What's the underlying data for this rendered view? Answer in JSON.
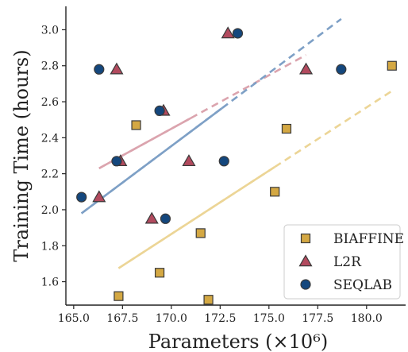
{
  "chart_data": {
    "type": "scatter",
    "xlabel": "Parameters (×10⁶)",
    "ylabel": "Training Time (hours)",
    "xlim": [
      164.6,
      182.0
    ],
    "ylim": [
      1.47,
      3.13
    ],
    "xticks": [
      165.0,
      167.5,
      170.0,
      172.5,
      175.0,
      177.5,
      180.0
    ],
    "xtick_labels": [
      "165.0",
      "167.5",
      "170.0",
      "172.5",
      "175.0",
      "177.5",
      "180.0"
    ],
    "yticks": [
      1.6,
      1.8,
      2.0,
      2.2,
      2.4,
      2.6,
      2.8,
      3.0
    ],
    "ytick_labels": [
      "1.6",
      "1.8",
      "2.0",
      "2.2",
      "2.4",
      "2.6",
      "2.8",
      "3.0"
    ],
    "legend_position": "bottom-right",
    "grid": false,
    "series": [
      {
        "name": "Biaffine",
        "display_name": "BIAFFINE",
        "marker": "square",
        "color": "#d4a843",
        "edge_color": "#3a3a3a",
        "fit_color": "#ecd596",
        "points": [
          [
            167.3,
            1.52
          ],
          [
            168.2,
            2.47
          ],
          [
            169.4,
            1.65
          ],
          [
            171.5,
            1.87
          ],
          [
            171.9,
            1.5
          ],
          [
            175.3,
            2.1
          ],
          [
            175.9,
            2.45
          ],
          [
            181.3,
            2.8
          ]
        ],
        "fit": {
          "x_start": 167.3,
          "x_end": 181.3,
          "y_start": 1.675,
          "y_end": 2.66,
          "solid_until_x": 175.3
        }
      },
      {
        "name": "L2R",
        "display_name": "L2R",
        "marker": "triangle",
        "color": "#b24a5e",
        "edge_color": "#3a3a3a",
        "fit_color": "#dba4ae",
        "points": [
          [
            166.3,
            2.07
          ],
          [
            167.2,
            2.78
          ],
          [
            167.4,
            2.27
          ],
          [
            169.0,
            1.95
          ],
          [
            169.6,
            2.55
          ],
          [
            170.9,
            2.27
          ],
          [
            172.9,
            2.98
          ],
          [
            176.9,
            2.78
          ]
        ],
        "fit": {
          "x_start": 166.3,
          "x_end": 176.9,
          "y_start": 2.23,
          "y_end": 2.86,
          "solid_until_x": 171.0
        }
      },
      {
        "name": "SeqLab",
        "display_name": "SEQLAB",
        "marker": "circle",
        "color": "#14477d",
        "edge_color": "#3a3a3a",
        "fit_color": "#7ea0c6",
        "points": [
          [
            165.4,
            2.07
          ],
          [
            166.3,
            2.78
          ],
          [
            167.2,
            2.27
          ],
          [
            169.4,
            2.55
          ],
          [
            169.7,
            1.95
          ],
          [
            172.7,
            2.27
          ],
          [
            173.4,
            2.98
          ],
          [
            178.7,
            2.78
          ]
        ],
        "fit": {
          "x_start": 165.4,
          "x_end": 178.7,
          "y_start": 1.98,
          "y_end": 3.06,
          "solid_until_x": 172.6
        }
      }
    ]
  }
}
